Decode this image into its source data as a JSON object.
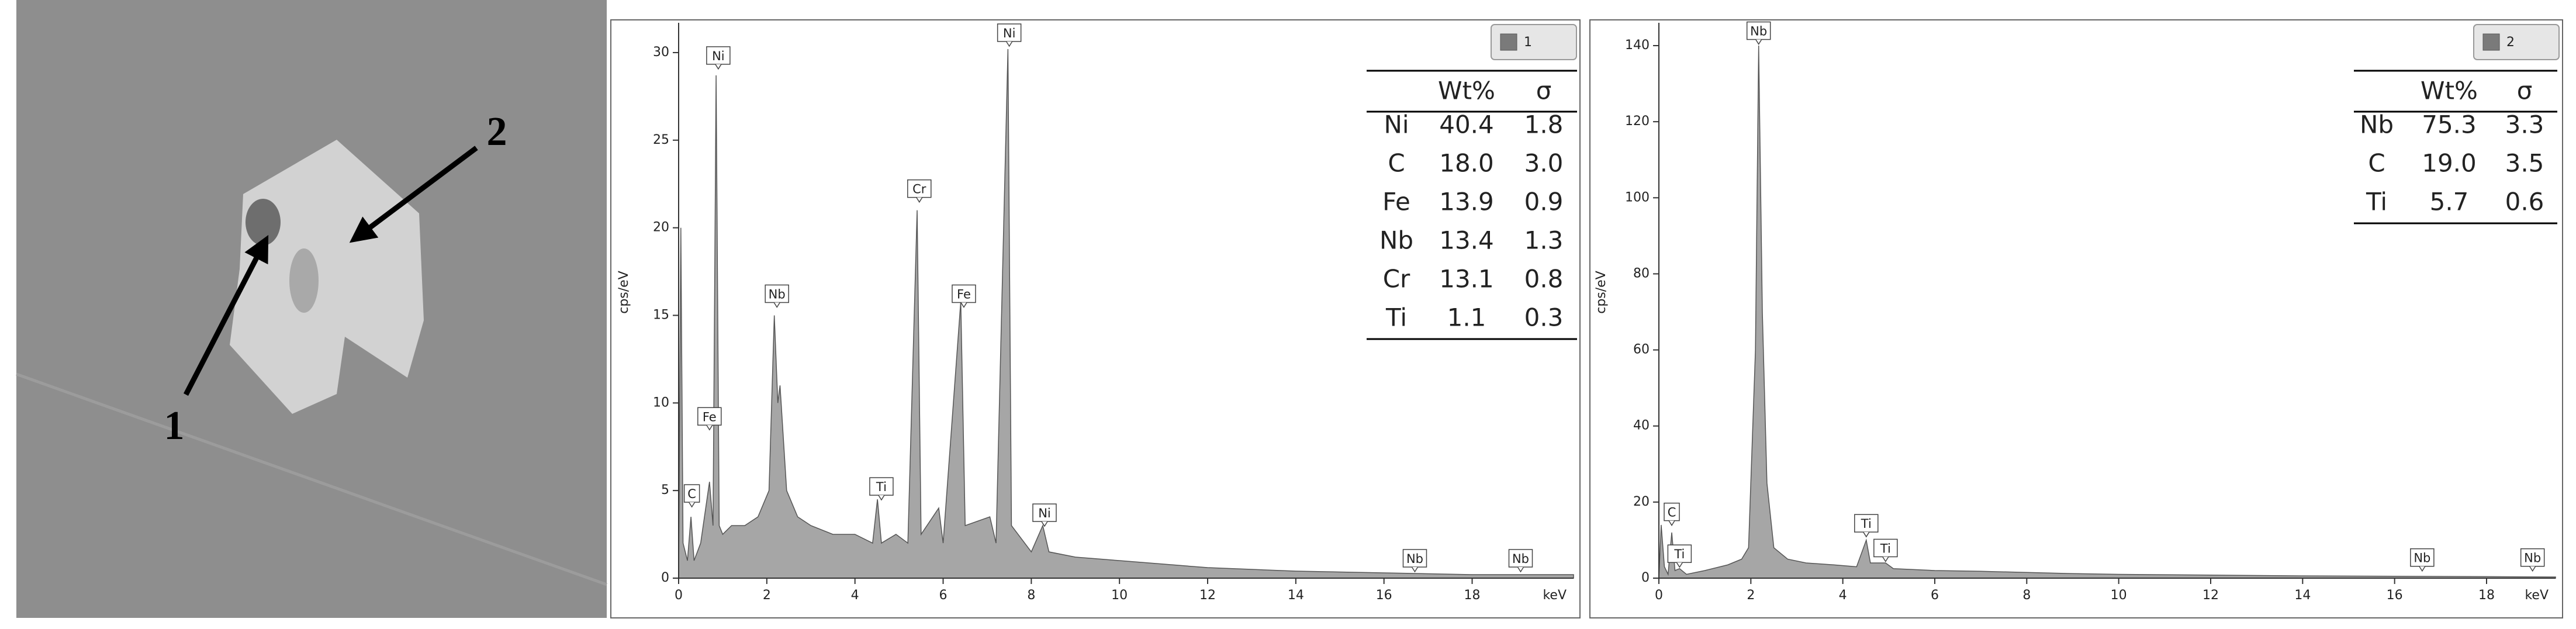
{
  "image": {
    "labels": [
      "1",
      "2"
    ]
  },
  "chart_data": [
    {
      "type": "area",
      "x": [
        0,
        0.05,
        0.1,
        0.2,
        0.28,
        0.35,
        0.5,
        0.7,
        0.78,
        0.85,
        0.92,
        1.0,
        1.2,
        1.5,
        1.8,
        2.05,
        2.17,
        2.25,
        2.3,
        2.45,
        2.7,
        3.0,
        3.5,
        4.0,
        4.4,
        4.51,
        4.6,
        4.93,
        5.2,
        5.41,
        5.5,
        5.9,
        6.0,
        6.4,
        6.5,
        7.06,
        7.2,
        7.47,
        7.55,
        8.0,
        8.26,
        8.4,
        9,
        10,
        11,
        12,
        13,
        14,
        15,
        16,
        17,
        18,
        19,
        20.3
      ],
      "series": [
        {
          "name": "1",
          "color": "#a6a6a6",
          "values": [
            0,
            20,
            2,
            1,
            3.5,
            1,
            2,
            5.5,
            3,
            28.7,
            3,
            2.5,
            3,
            3,
            3.5,
            5,
            15,
            10,
            11,
            5,
            3.5,
            3,
            2.5,
            2.5,
            2,
            4.5,
            2,
            2.5,
            2,
            21,
            2.5,
            4,
            2,
            15.8,
            3,
            3.5,
            2,
            30.2,
            3,
            1.5,
            3,
            1.5,
            1.2,
            1,
            0.8,
            0.6,
            0.5,
            0.4,
            0.35,
            0.3,
            0.25,
            0.2,
            0.2,
            0.2
          ]
        }
      ],
      "xlim": [
        0,
        20.3
      ],
      "xticks": [
        0,
        2,
        4,
        6,
        8,
        10,
        12,
        14,
        16,
        18
      ],
      "ylim": [
        0,
        31.7
      ],
      "yticks": [
        0,
        5,
        10,
        15,
        20,
        25,
        30
      ],
      "xlabel": "keV",
      "ylabel": "cps/eV",
      "annotations": [
        {
          "text": "C",
          "x": 0.3,
          "y": 4.2
        },
        {
          "text": "Fe",
          "x": 0.7,
          "y": 8.6
        },
        {
          "text": "Ni",
          "x": 0.9,
          "y": 29.2
        },
        {
          "text": "Nb",
          "x": 2.23,
          "y": 15.6
        },
        {
          "text": "Ti",
          "x": 4.6,
          "y": 4.6
        },
        {
          "text": "Cr",
          "x": 5.46,
          "y": 21.6
        },
        {
          "text": "Fe",
          "x": 6.47,
          "y": 15.6
        },
        {
          "text": "Ni",
          "x": 7.5,
          "y": 30.5
        },
        {
          "text": "Ni",
          "x": 8.3,
          "y": 3.1
        },
        {
          "text": "Nb",
          "x": 16.7,
          "y": 0.5
        },
        {
          "text": "Nb",
          "x": 19.1,
          "y": 0.5
        }
      ],
      "table": {
        "columns": [
          "Wt%",
          "σ"
        ],
        "rows": [
          [
            "Ni",
            "40.4",
            "1.8"
          ],
          [
            "C",
            "18.0",
            "3.0"
          ],
          [
            "Fe",
            "13.9",
            "0.9"
          ],
          [
            "Nb",
            "13.4",
            "1.3"
          ],
          [
            "Cr",
            "13.1",
            "0.8"
          ],
          [
            "Ti",
            "1.1",
            "0.3"
          ]
        ]
      }
    },
    {
      "type": "area",
      "x": [
        0,
        0.05,
        0.12,
        0.2,
        0.28,
        0.35,
        0.45,
        0.6,
        1,
        1.5,
        1.8,
        1.95,
        2.1,
        2.17,
        2.25,
        2.35,
        2.5,
        2.8,
        3.2,
        3.8,
        4.3,
        4.51,
        4.6,
        4.93,
        5.1,
        6,
        7,
        8,
        9,
        10,
        12,
        14,
        16,
        18,
        19.5
      ],
      "series": [
        {
          "name": "2",
          "color": "#a6a6a6",
          "values": [
            0,
            14,
            3,
            1,
            12,
            2,
            2.5,
            1,
            2,
            3.5,
            5,
            8,
            60,
            140,
            70,
            25,
            8,
            5,
            4,
            3.5,
            3,
            10,
            4,
            4,
            2.5,
            2,
            1.8,
            1.5,
            1.2,
            1,
            0.8,
            0.6,
            0.5,
            0.4,
            0.3
          ]
        }
      ],
      "xlim": [
        0,
        19.5
      ],
      "xticks": [
        0,
        2,
        4,
        6,
        8,
        10,
        12,
        14,
        16,
        18
      ],
      "ylim": [
        0,
        146
      ],
      "yticks": [
        0,
        20,
        40,
        60,
        80,
        100,
        120,
        140
      ],
      "xlabel": "keV",
      "ylabel": "cps/eV",
      "annotations": [
        {
          "text": "C",
          "x": 0.28,
          "y": 14.5
        },
        {
          "text": "Ti",
          "x": 0.45,
          "y": 3.5
        },
        {
          "text": "Nb",
          "x": 2.17,
          "y": 141
        },
        {
          "text": "Ti",
          "x": 4.51,
          "y": 11.5
        },
        {
          "text": "Ti",
          "x": 4.93,
          "y": 5
        },
        {
          "text": "Nb",
          "x": 16.6,
          "y": 2.5
        },
        {
          "text": "Nb",
          "x": 19.0,
          "y": 2.5
        }
      ],
      "table": {
        "columns": [
          "Wt%",
          "σ"
        ],
        "rows": [
          [
            "Nb",
            "75.3",
            "3.3"
          ],
          [
            "C",
            "19.0",
            "3.5"
          ],
          [
            "Ti",
            "5.7",
            "0.6"
          ]
        ]
      }
    }
  ]
}
